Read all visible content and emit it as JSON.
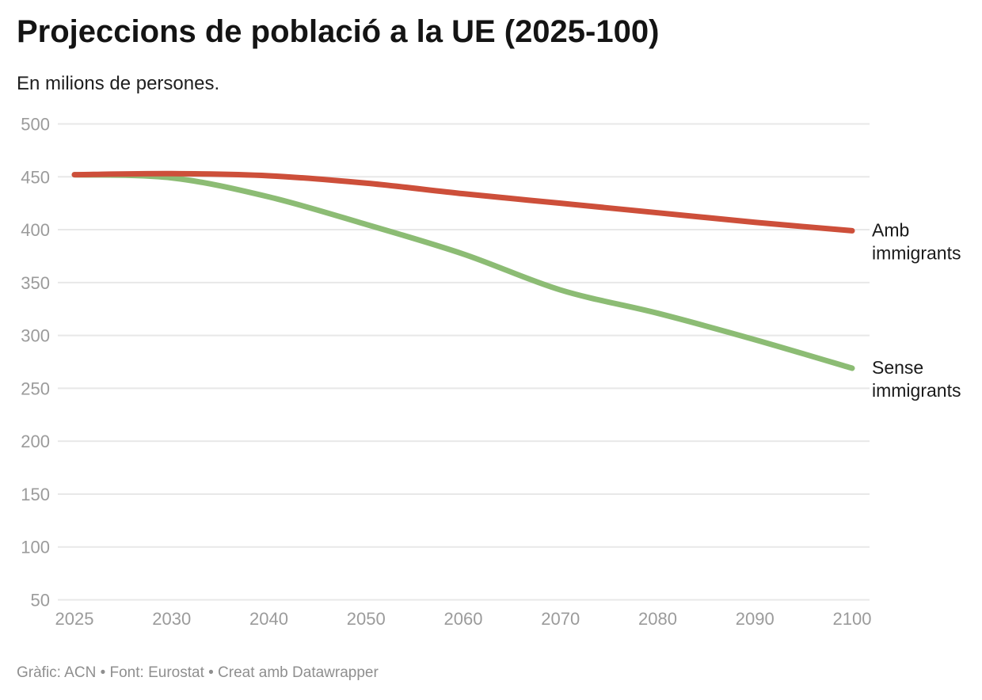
{
  "chart_data": {
    "type": "line",
    "title": "Projeccions de població a la UE (2025-100)",
    "subtitle": "En milions de persones.",
    "footer": "Gràfic: ACN • Font: Eurostat • Creat amb Datawrapper",
    "x_ticks": [
      "2025",
      "2030",
      "2040",
      "2050",
      "2060",
      "2070",
      "2080",
      "2090",
      "2100"
    ],
    "y_ticks": [
      500,
      450,
      400,
      350,
      300,
      250,
      200,
      150,
      100,
      50
    ],
    "ylim": [
      50,
      500
    ],
    "grid": true,
    "legend_position": "direct-labels-right",
    "axis_color": "#9b9b9b",
    "grid_color": "#e8e8e8",
    "label_color": "#1a1a1a",
    "series": [
      {
        "name": "Amb immigrants",
        "label_lines": [
          "Amb",
          "immigrants"
        ],
        "color": "#cd4f3a",
        "values": [
          452,
          453,
          451,
          444,
          434,
          425,
          416,
          407,
          399
        ]
      },
      {
        "name": "Sense immigrants",
        "label_lines": [
          "Sense",
          "immigrants"
        ],
        "color": "#8cbc74",
        "values": [
          452,
          449,
          431,
          405,
          377,
          343,
          321,
          296,
          269
        ]
      }
    ]
  }
}
